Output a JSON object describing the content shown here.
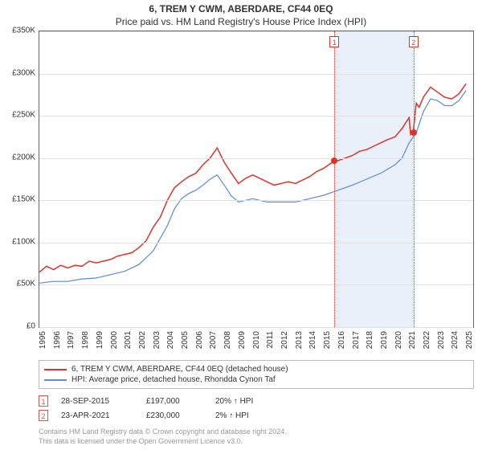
{
  "title": "6, TREM Y CWM, ABERDARE, CF44 0EQ",
  "subtitle": "Price paid vs. HM Land Registry's House Price Index (HPI)",
  "chart": {
    "type": "line",
    "background_color": "#ffffff",
    "grid_color": "#e0e0e0",
    "border_color": "#666666",
    "label_fontsize": 10,
    "title_fontsize": 12,
    "x": {
      "min": 1995,
      "max": 2025.5,
      "ticks": [
        1995,
        1996,
        1997,
        1998,
        1999,
        2000,
        2001,
        2002,
        2003,
        2004,
        2005,
        2006,
        2007,
        2008,
        2009,
        2010,
        2011,
        2012,
        2013,
        2014,
        2015,
        2016,
        2017,
        2018,
        2019,
        2020,
        2021,
        2022,
        2023,
        2024,
        2025
      ]
    },
    "y": {
      "min": 0,
      "max": 350000,
      "ticks": [
        {
          "v": 0,
          "label": "£0"
        },
        {
          "v": 50000,
          "label": "£50K"
        },
        {
          "v": 100000,
          "label": "£100K"
        },
        {
          "v": 150000,
          "label": "£150K"
        },
        {
          "v": 200000,
          "label": "£200K"
        },
        {
          "v": 250000,
          "label": "£250K"
        },
        {
          "v": 300000,
          "label": "£300K"
        },
        {
          "v": 350000,
          "label": "£350K"
        }
      ]
    },
    "highlight": {
      "start": 2015.74,
      "end": 2021.31,
      "color": "#e9f0f9"
    },
    "series": [
      {
        "name": "6, TREM Y CWM, ABERDARE, CF44 0EQ (detached house)",
        "color": "#d9342b",
        "width": 1.5,
        "data": [
          [
            1995,
            65000
          ],
          [
            1995.5,
            72000
          ],
          [
            1996,
            68000
          ],
          [
            1996.5,
            73000
          ],
          [
            1997,
            70000
          ],
          [
            1997.5,
            73000
          ],
          [
            1998,
            72000
          ],
          [
            1998.5,
            78000
          ],
          [
            1999,
            76000
          ],
          [
            1999.5,
            78000
          ],
          [
            2000,
            80000
          ],
          [
            2000.5,
            84000
          ],
          [
            2001,
            86000
          ],
          [
            2001.5,
            88000
          ],
          [
            2002,
            94000
          ],
          [
            2002.5,
            102000
          ],
          [
            2003,
            118000
          ],
          [
            2003.5,
            130000
          ],
          [
            2004,
            150000
          ],
          [
            2004.5,
            165000
          ],
          [
            2005,
            172000
          ],
          [
            2005.5,
            178000
          ],
          [
            2006,
            182000
          ],
          [
            2006.5,
            192000
          ],
          [
            2007,
            200000
          ],
          [
            2007.5,
            212000
          ],
          [
            2008,
            195000
          ],
          [
            2008.5,
            182000
          ],
          [
            2009,
            170000
          ],
          [
            2009.5,
            176000
          ],
          [
            2010,
            180000
          ],
          [
            2010.5,
            176000
          ],
          [
            2011,
            172000
          ],
          [
            2011.5,
            168000
          ],
          [
            2012,
            170000
          ],
          [
            2012.5,
            172000
          ],
          [
            2013,
            170000
          ],
          [
            2013.5,
            174000
          ],
          [
            2014,
            178000
          ],
          [
            2014.5,
            184000
          ],
          [
            2015,
            188000
          ],
          [
            2015.5,
            194000
          ],
          [
            2016,
            197000
          ],
          [
            2016.5,
            200000
          ],
          [
            2017,
            203000
          ],
          [
            2017.5,
            208000
          ],
          [
            2018,
            210000
          ],
          [
            2018.5,
            214000
          ],
          [
            2019,
            218000
          ],
          [
            2019.5,
            222000
          ],
          [
            2020,
            225000
          ],
          [
            2020.5,
            235000
          ],
          [
            2021,
            248000
          ],
          [
            2021.1,
            228000
          ],
          [
            2021.3,
            232000
          ],
          [
            2021.5,
            265000
          ],
          [
            2021.7,
            260000
          ],
          [
            2022,
            272000
          ],
          [
            2022.5,
            284000
          ],
          [
            2023,
            278000
          ],
          [
            2023.5,
            272000
          ],
          [
            2024,
            270000
          ],
          [
            2024.5,
            276000
          ],
          [
            2025,
            288000
          ]
        ]
      },
      {
        "name": "HPI: Average price, detached house, Rhondda Cynon Taf",
        "color": "#5b8bd4",
        "width": 1.2,
        "data": [
          [
            1995,
            52000
          ],
          [
            1996,
            54000
          ],
          [
            1997,
            54000
          ],
          [
            1998,
            57000
          ],
          [
            1999,
            58000
          ],
          [
            2000,
            62000
          ],
          [
            2001,
            66000
          ],
          [
            2002,
            74000
          ],
          [
            2003,
            90000
          ],
          [
            2004,
            120000
          ],
          [
            2004.5,
            140000
          ],
          [
            2005,
            152000
          ],
          [
            2005.5,
            158000
          ],
          [
            2006,
            162000
          ],
          [
            2006.5,
            168000
          ],
          [
            2007,
            175000
          ],
          [
            2007.5,
            180000
          ],
          [
            2008,
            168000
          ],
          [
            2008.5,
            155000
          ],
          [
            2009,
            148000
          ],
          [
            2010,
            152000
          ],
          [
            2011,
            148000
          ],
          [
            2012,
            148000
          ],
          [
            2013,
            148000
          ],
          [
            2014,
            152000
          ],
          [
            2015,
            156000
          ],
          [
            2016,
            162000
          ],
          [
            2017,
            168000
          ],
          [
            2018,
            175000
          ],
          [
            2019,
            182000
          ],
          [
            2020,
            192000
          ],
          [
            2020.5,
            200000
          ],
          [
            2021,
            218000
          ],
          [
            2021.5,
            230000
          ],
          [
            2022,
            255000
          ],
          [
            2022.5,
            270000
          ],
          [
            2023,
            268000
          ],
          [
            2023.5,
            262000
          ],
          [
            2024,
            262000
          ],
          [
            2024.5,
            268000
          ],
          [
            2025,
            280000
          ]
        ]
      }
    ],
    "vertical_markers": [
      {
        "x": 2015.74,
        "label": "1",
        "marker_color": "#d9342b"
      },
      {
        "x": 2021.31,
        "label": "2",
        "marker_color": "#d9342b"
      }
    ],
    "event_points": [
      {
        "x": 2015.74,
        "y": 197000,
        "color": "#d9342b"
      },
      {
        "x": 2021.31,
        "y": 230000,
        "color": "#d9342b"
      }
    ]
  },
  "legend": {
    "items": [
      {
        "label": "6, TREM Y CWM, ABERDARE, CF44 0EQ (detached house)",
        "color": "#d9342b"
      },
      {
        "label": "HPI: Average price, detached house, Rhondda Cynon Taf",
        "color": "#5b8bd4"
      }
    ]
  },
  "events": [
    {
      "num": "1",
      "date": "28-SEP-2015",
      "price": "£197,000",
      "change": "20% ↑ HPI"
    },
    {
      "num": "2",
      "date": "23-APR-2021",
      "price": "£230,000",
      "change": "2% ↑ HPI"
    }
  ],
  "footer": {
    "line1": "Contains HM Land Registry data © Crown copyright and database right 2024.",
    "line2": "This data is licensed under the Open Government Licence v3.0."
  }
}
